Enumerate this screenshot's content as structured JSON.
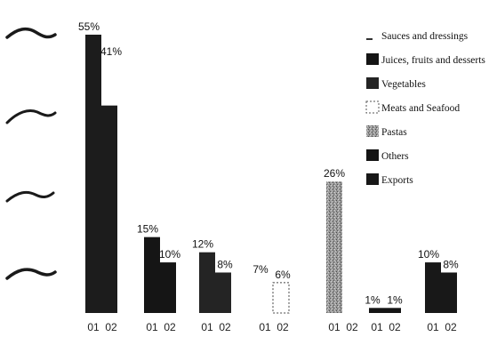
{
  "chart_data": {
    "type": "bar",
    "title": "",
    "xlabel": "",
    "ylabel": "",
    "ylim": [
      0,
      55
    ],
    "grid": false,
    "legend_placement": "top-right",
    "categories": [
      "Sauces and dressings",
      "Juices, fruits and desserts",
      "Vegetables",
      "Meats and Seafood",
      "Pastas",
      "Others",
      "Exports"
    ],
    "x_tick_labels": [
      "01",
      "02"
    ],
    "colors": {
      "Sauces and dressings": "#1c1c1c",
      "Juices, fruits and desserts": "#151515",
      "Vegetables": "#242424",
      "Meats and Seafood": "#ffffff",
      "Pastas": "#a0a0a0",
      "Others": "#141414",
      "Exports": "#181818"
    },
    "series": [
      {
        "name": "01",
        "values": [
          55,
          15,
          12,
          7,
          26,
          1,
          10
        ],
        "labels": [
          "55%",
          "15%",
          "12%",
          "7%",
          "",
          "1%",
          "10%"
        ]
      },
      {
        "name": "02",
        "values": [
          41,
          10,
          8,
          6,
          26,
          1,
          8
        ],
        "labels": [
          "41%",
          "10%",
          "8%",
          "6%",
          "26%",
          "1%",
          "8%"
        ]
      }
    ]
  }
}
